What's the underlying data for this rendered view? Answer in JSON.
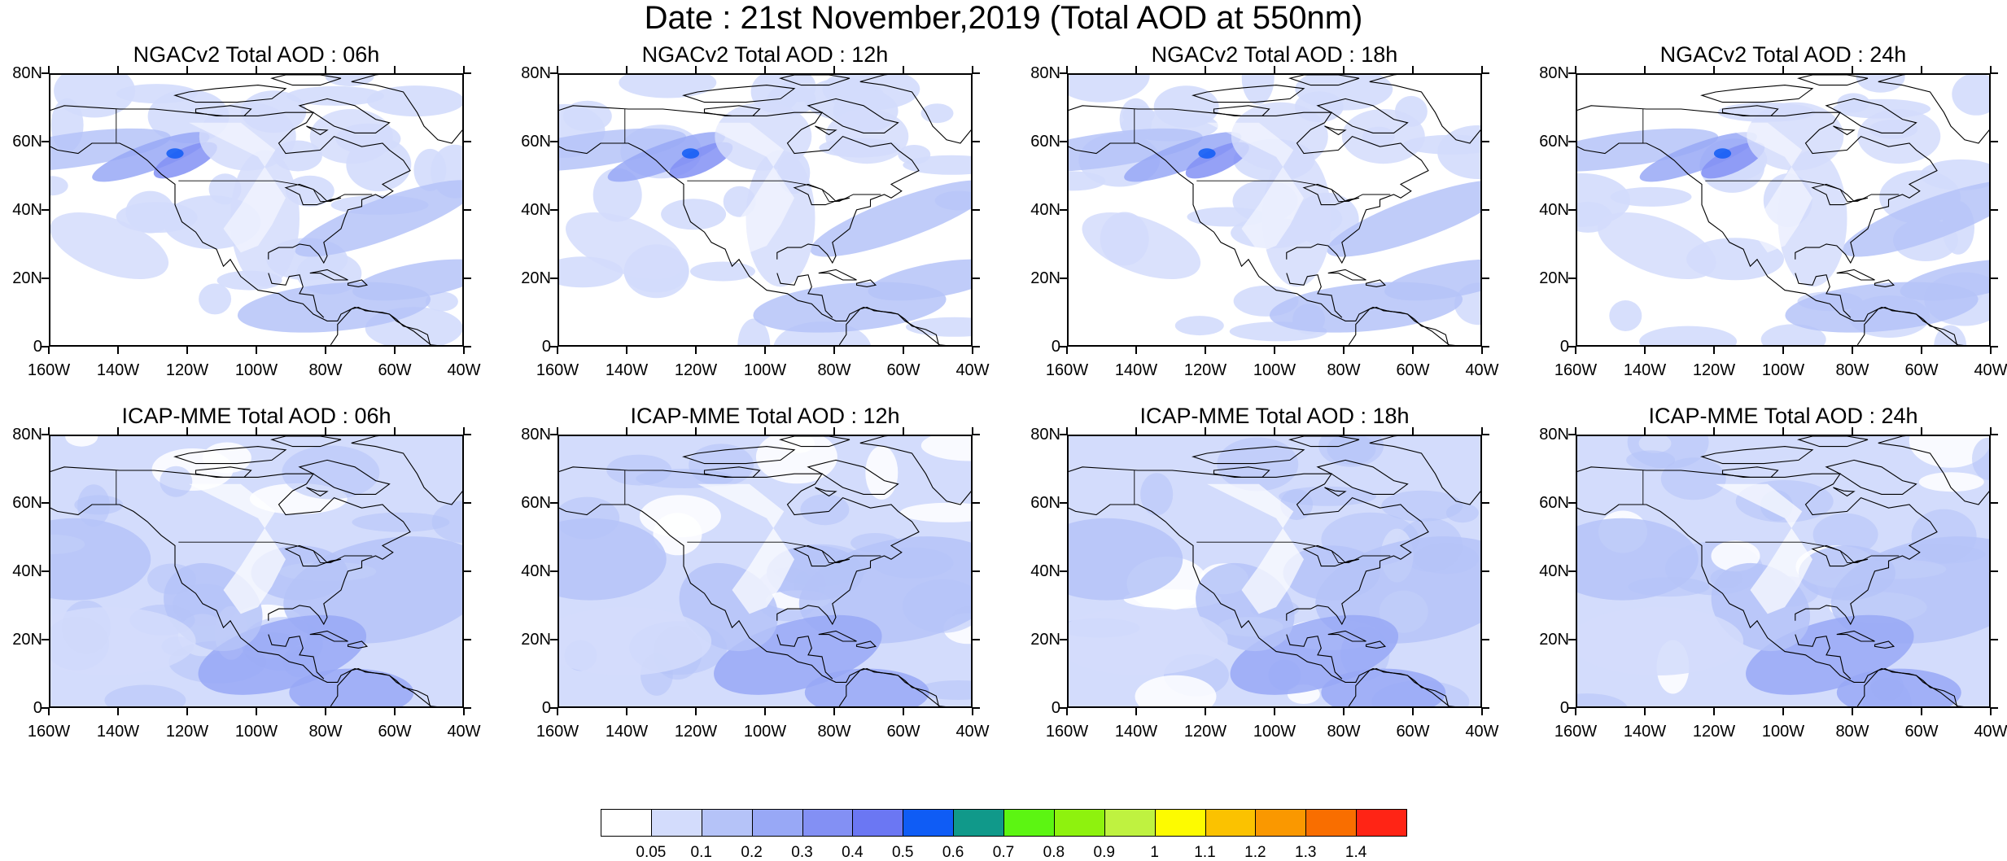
{
  "title": "Date : 21st November,2019 (Total AOD at 550nm)",
  "panels": [
    {
      "title": "NGACv2 Total AOD : 06h",
      "model": "ngac",
      "variant": 0
    },
    {
      "title": "NGACv2 Total AOD : 12h",
      "model": "ngac",
      "variant": 1
    },
    {
      "title": "NGACv2 Total AOD : 18h",
      "model": "ngac",
      "variant": 2
    },
    {
      "title": "NGACv2 Total AOD : 24h",
      "model": "ngac",
      "variant": 3
    },
    {
      "title": "ICAP-MME Total AOD : 06h",
      "model": "icap",
      "variant": 0
    },
    {
      "title": "ICAP-MME Total AOD : 12h",
      "model": "icap",
      "variant": 1
    },
    {
      "title": "ICAP-MME Total AOD : 18h",
      "model": "icap",
      "variant": 2
    },
    {
      "title": "ICAP-MME Total AOD : 24h",
      "model": "icap",
      "variant": 3
    }
  ],
  "map": {
    "lon_range": [
      -160,
      -40
    ],
    "lat_range": [
      0,
      80
    ],
    "lat_ticks": [
      "0",
      "20N",
      "40N",
      "60N",
      "80N"
    ],
    "lon_ticks": [
      "160W",
      "140W",
      "120W",
      "100W",
      "80W",
      "60W",
      "40W"
    ]
  },
  "colorbar": {
    "labels": [
      "0.05",
      "0.1",
      "0.2",
      "0.3",
      "0.4",
      "0.5",
      "0.6",
      "0.7",
      "0.8",
      "0.9",
      "1",
      "1.1",
      "1.2",
      "1.3",
      "1.4"
    ],
    "colors": [
      "#ffffff",
      "#d3dcfc",
      "#b5c3f8",
      "#98a8f6",
      "#8390f4",
      "#6b77f3",
      "#0f5cf5",
      "#10998a",
      "#5cf512",
      "#8ef20e",
      "#bff240",
      "#fdfb00",
      "#fbc200",
      "#fa9800",
      "#f96e00",
      "#ff2415"
    ]
  }
}
